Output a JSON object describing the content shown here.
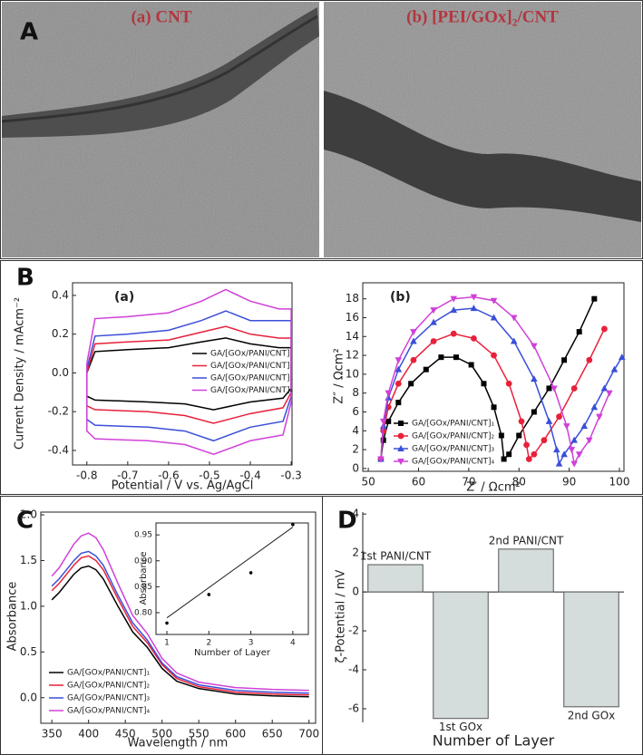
{
  "figure": {
    "panels": [
      "A",
      "B",
      "C",
      "D"
    ],
    "images": [
      "(a) CNT",
      "(b) [PEI/GOx]₂/CNT"
    ]
  },
  "chart_data": [
    {
      "type": "line",
      "label": "(a)",
      "xlabel": "Potential / V vs. Ag/AgCl",
      "ylabel": "Current Density / mAcm⁻²",
      "xlim": [
        -0.835,
        -0.298
      ],
      "ylim": [
        -0.475,
        0.465
      ],
      "xticks": [
        -0.8,
        -0.7,
        -0.6,
        -0.5,
        -0.4,
        -0.3
      ],
      "yticks": [
        -0.4,
        -0.2,
        {
          "value": 0,
          "label": "0.0"
        },
        0.2,
        0.4
      ],
      "series": [
        {
          "name": "GA/[GOx/PANI/CNT]₁",
          "color": "#000000",
          "x": [
            -0.8,
            -0.78,
            -0.7,
            -0.6,
            -0.52,
            -0.46,
            -0.4,
            -0.33,
            -0.3,
            -0.3,
            -0.32,
            -0.4,
            -0.49,
            -0.56,
            -0.65,
            -0.78,
            -0.8,
            -0.8
          ],
          "values": [
            0.0,
            0.11,
            0.12,
            0.13,
            0.16,
            0.18,
            0.15,
            0.13,
            0.13,
            -0.08,
            -0.13,
            -0.15,
            -0.19,
            -0.16,
            -0.15,
            -0.14,
            -0.12,
            0.0
          ]
        },
        {
          "name": "GA/[GOx/PANI/CNT]₂",
          "color": "#e8213a",
          "x": [
            -0.8,
            -0.78,
            -0.7,
            -0.6,
            -0.52,
            -0.46,
            -0.4,
            -0.33,
            -0.3,
            -0.3,
            -0.32,
            -0.4,
            -0.49,
            -0.56,
            -0.65,
            -0.78,
            -0.8,
            -0.8
          ],
          "values": [
            0.0,
            0.15,
            0.16,
            0.17,
            0.21,
            0.24,
            0.2,
            0.18,
            0.18,
            -0.1,
            -0.18,
            -0.21,
            -0.26,
            -0.22,
            -0.2,
            -0.19,
            -0.17,
            0.0
          ]
        },
        {
          "name": "GA/[GOx/PANI/CNT]₃",
          "color": "#3a4fd8",
          "x": [
            -0.8,
            -0.78,
            -0.7,
            -0.6,
            -0.52,
            -0.46,
            -0.4,
            -0.33,
            -0.3,
            -0.3,
            -0.32,
            -0.4,
            -0.49,
            -0.56,
            -0.65,
            -0.78,
            -0.8,
            -0.8
          ],
          "values": [
            0.02,
            0.19,
            0.2,
            0.22,
            0.27,
            0.32,
            0.27,
            0.27,
            0.27,
            -0.12,
            -0.25,
            -0.28,
            -0.35,
            -0.3,
            -0.28,
            -0.27,
            -0.24,
            0.02
          ]
        },
        {
          "name": "GA/[GOx/PANI/CNT]₄",
          "color": "#d040d8",
          "x": [
            -0.8,
            -0.78,
            -0.7,
            -0.6,
            -0.52,
            -0.46,
            -0.4,
            -0.33,
            -0.3,
            -0.3,
            -0.32,
            -0.4,
            -0.49,
            -0.56,
            -0.65,
            -0.78,
            -0.8,
            -0.8
          ],
          "values": [
            0.05,
            0.28,
            0.29,
            0.31,
            0.37,
            0.43,
            0.37,
            0.33,
            0.33,
            -0.15,
            -0.32,
            -0.35,
            -0.42,
            -0.37,
            -0.35,
            -0.34,
            -0.3,
            0.05
          ]
        }
      ]
    },
    {
      "type": "line",
      "label": "(b)",
      "xlabel": "Z′ / Ωcm²",
      "ylabel": "Z″ / Ωcm²",
      "xlim": [
        48.9,
        100.9
      ],
      "ylim": [
        -0.3,
        19.7
      ],
      "xticks": [
        50,
        60,
        70,
        80,
        90,
        100
      ],
      "yticks": [
        0,
        2,
        4,
        6,
        8,
        10,
        12,
        14,
        16,
        18
      ],
      "series": [
        {
          "name": "GA/[GOx/PANI/CNT]₁",
          "color": "#000000",
          "marker": "square",
          "x": [
            52.5,
            53,
            54,
            56,
            58.5,
            61.5,
            64.5,
            67.5,
            70.5,
            73,
            75,
            76.5,
            77,
            78,
            80,
            83,
            86,
            89,
            92,
            95
          ],
          "values": [
            1,
            3,
            5,
            7,
            9,
            10.5,
            11.8,
            11.8,
            11,
            9,
            6.5,
            3.5,
            1,
            1.5,
            3.5,
            6,
            8.5,
            11.5,
            14.5,
            18
          ]
        },
        {
          "name": "GA/[GOx/PANI/CNT]₂",
          "color": "#e8213a",
          "marker": "circle",
          "x": [
            52.5,
            53,
            54,
            56,
            59,
            63,
            67,
            71,
            75,
            78,
            80.5,
            81.5,
            82,
            83,
            85,
            88,
            91,
            94,
            97
          ],
          "values": [
            1,
            4,
            6.5,
            9,
            11.5,
            13.5,
            14.3,
            13.8,
            12,
            9,
            5,
            2.5,
            1,
            1.5,
            3,
            5.5,
            8.5,
            11.5,
            14.8
          ]
        },
        {
          "name": "GA/[GOx/PANI/CNT]₃",
          "color": "#3a4fd8",
          "marker": "triangle-up",
          "x": [
            52.5,
            53,
            54,
            56,
            59,
            63,
            67,
            71,
            75,
            79,
            83,
            86,
            87.5,
            88,
            89,
            91,
            93,
            95,
            97,
            99,
            100.5
          ],
          "values": [
            1,
            4.5,
            7.5,
            10.5,
            13.5,
            15.5,
            16.8,
            17,
            16,
            13.5,
            9.5,
            5,
            2,
            0.5,
            1.5,
            3,
            4.5,
            6.5,
            8.5,
            10.5,
            11.8
          ]
        },
        {
          "name": "GA/[GOx/PANI/CNT]₄",
          "color": "#d040d8",
          "marker": "triangle-down",
          "x": [
            52.5,
            53,
            54,
            56,
            59,
            63,
            67,
            71,
            75,
            79,
            83,
            87,
            89.5,
            90.5,
            91,
            92,
            94,
            96,
            98
          ],
          "values": [
            1,
            5,
            8,
            11.5,
            14.5,
            16.8,
            18,
            18.2,
            17.8,
            16,
            13,
            8.5,
            4.5,
            2,
            0.5,
            1.5,
            3,
            5.5,
            8
          ]
        }
      ]
    },
    {
      "type": "line",
      "xlabel": "Wavelength / nm",
      "ylabel": "Absorbance",
      "xlim": [
        335,
        709
      ],
      "ylim": [
        -0.28,
        2.03
      ],
      "xticks": [
        350,
        400,
        450,
        500,
        550,
        600,
        650,
        700
      ],
      "yticks": [
        {
          "value": 0,
          "label": "0.0"
        },
        0.5,
        {
          "value": 1,
          "label": "1.0"
        },
        1.5,
        {
          "value": 2,
          "label": "2.0"
        }
      ],
      "series": [
        {
          "name": "GA/[GOx/PANI/CNT]₁",
          "color": "#000000",
          "x": [
            350,
            360,
            370,
            380,
            390,
            400,
            410,
            420,
            440,
            460,
            480,
            500,
            520,
            550,
            600,
            650,
            700
          ],
          "values": [
            1.07,
            1.15,
            1.25,
            1.35,
            1.42,
            1.44,
            1.4,
            1.3,
            1.0,
            0.72,
            0.55,
            0.32,
            0.18,
            0.1,
            0.04,
            0.02,
            0.01
          ]
        },
        {
          "name": "GA/[GOx/PANI/CNT]₂",
          "color": "#e8213a",
          "x": [
            350,
            360,
            370,
            380,
            390,
            400,
            410,
            420,
            440,
            460,
            480,
            500,
            520,
            550,
            600,
            650,
            700
          ],
          "values": [
            1.17,
            1.25,
            1.35,
            1.45,
            1.53,
            1.55,
            1.5,
            1.4,
            1.08,
            0.78,
            0.6,
            0.36,
            0.21,
            0.12,
            0.06,
            0.04,
            0.03
          ]
        },
        {
          "name": "GA/[GOx/PANI/CNT]₃",
          "color": "#3a4fd8",
          "x": [
            350,
            360,
            370,
            380,
            390,
            400,
            410,
            420,
            440,
            460,
            480,
            500,
            520,
            550,
            600,
            650,
            700
          ],
          "values": [
            1.22,
            1.3,
            1.4,
            1.5,
            1.58,
            1.6,
            1.55,
            1.45,
            1.12,
            0.82,
            0.63,
            0.38,
            0.23,
            0.14,
            0.08,
            0.06,
            0.05
          ]
        },
        {
          "name": "GA/[GOx/PANI/CNT]₄",
          "color": "#d040d8",
          "x": [
            350,
            360,
            370,
            380,
            390,
            400,
            410,
            420,
            440,
            460,
            480,
            500,
            520,
            550,
            600,
            650,
            700
          ],
          "values": [
            1.33,
            1.42,
            1.55,
            1.68,
            1.77,
            1.8,
            1.75,
            1.62,
            1.25,
            0.9,
            0.7,
            0.43,
            0.27,
            0.17,
            0.11,
            0.09,
            0.08
          ]
        }
      ]
    },
    {
      "type": "scatter",
      "xlabel": "Number of Layer",
      "ylabel": "Absorbance",
      "xlim": [
        0.74,
        4.37
      ],
      "ylim": [
        0.758,
        0.973
      ],
      "xticks": [
        1,
        2,
        3,
        4
      ],
      "yticks": [
        {
          "value": 0.8,
          "label": "0.80"
        },
        0.85,
        {
          "value": 0.9,
          "label": "0.90"
        },
        0.95
      ],
      "x": [
        1,
        2,
        3,
        4
      ],
      "values": [
        0.78,
        0.835,
        0.877,
        0.97
      ],
      "color": "#000000",
      "fit": {
        "x": [
          1,
          4
        ],
        "values": [
          0.79,
          0.965
        ]
      }
    },
    {
      "type": "bar",
      "xlabel": "Number of Layer",
      "ylabel": "ζ-Potential / mV",
      "ylim": [
        -6.7,
        4.1
      ],
      "yticks": [
        -6,
        -4,
        -2,
        0,
        2,
        4
      ],
      "categories": [
        "1st PANI/CNT",
        "1st GOx",
        "2nd PANI/CNT",
        "2nd GOx"
      ],
      "values": [
        1.4,
        -6.5,
        2.2,
        -5.9
      ],
      "color": "#d5dcdc"
    }
  ]
}
